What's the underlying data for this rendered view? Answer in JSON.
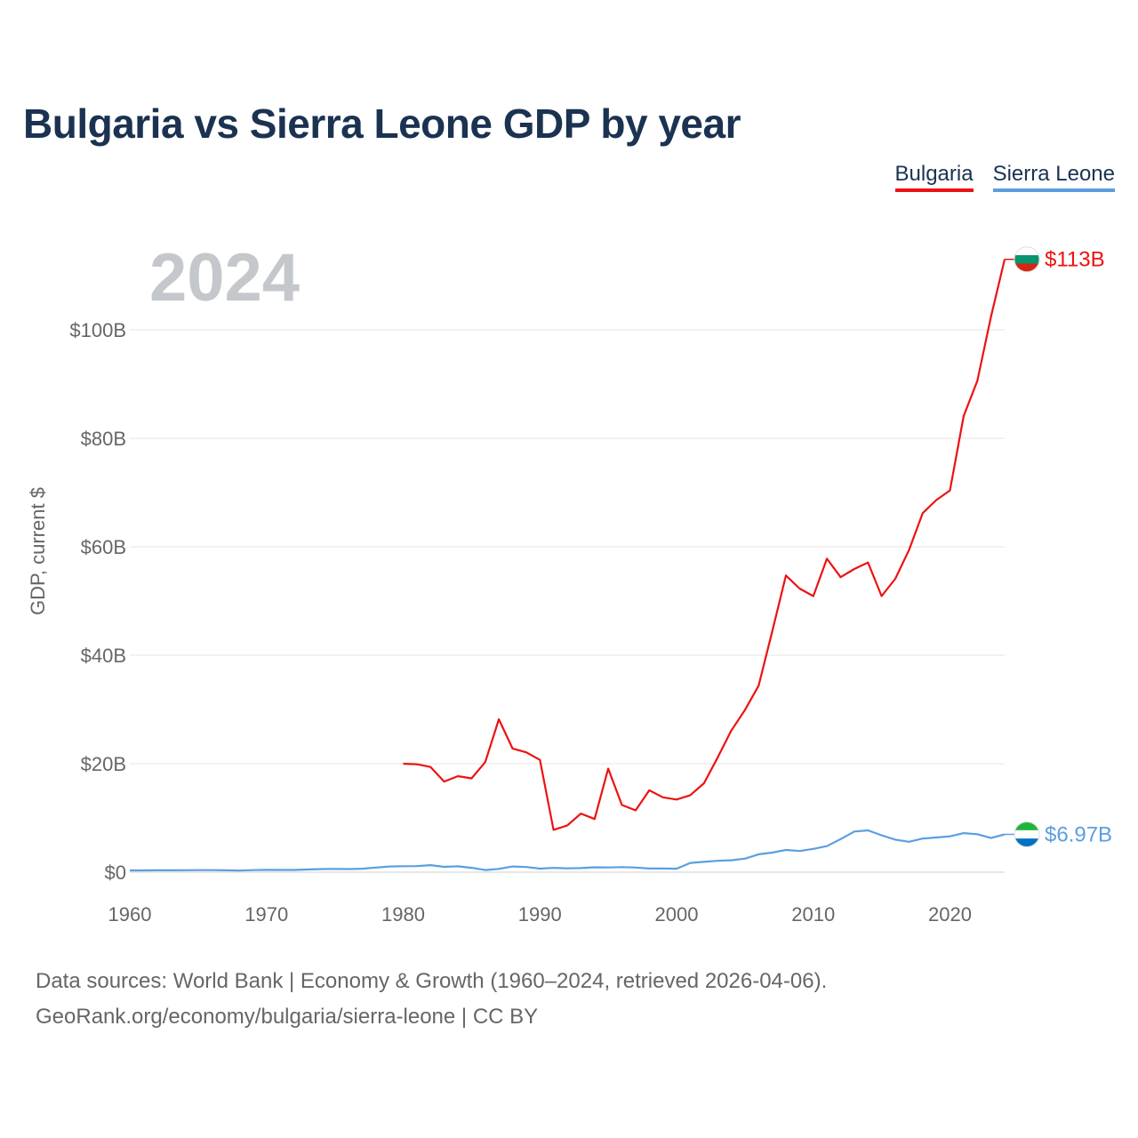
{
  "header": {
    "title": "Bulgaria vs Sierra Leone GDP by year"
  },
  "legend": [
    {
      "label": "Bulgaria",
      "color": "#ee1111"
    },
    {
      "label": "Sierra Leone",
      "color": "#5b9ee0"
    }
  ],
  "footer": {
    "line1": "Data sources: World Bank | Economy & Growth (1960–2024, retrieved 2026-04-06).",
    "line2": "GeoRank.org/economy/bulgaria/sierra-leone | CC BY"
  },
  "chart_data": {
    "type": "line",
    "title": "Bulgaria vs Sierra Leone GDP by year",
    "year_label": "2024",
    "xlabel": "",
    "ylabel": "GDP, current $",
    "xlim": [
      1960,
      2024
    ],
    "ylim": [
      0,
      120
    ],
    "y_unit": "billions of current US$",
    "x_ticks": [
      1960,
      1970,
      1980,
      1990,
      2000,
      2010,
      2020
    ],
    "x_tick_labels": [
      "1960",
      "1970",
      "1980",
      "1990",
      "2000",
      "2010",
      "2020"
    ],
    "y_ticks": [
      0,
      20,
      40,
      60,
      80,
      100
    ],
    "y_tick_labels": [
      "$0",
      "$20B",
      "$40B",
      "$60B",
      "$80B",
      "$100B"
    ],
    "grid": true,
    "series": [
      {
        "name": "Bulgaria",
        "color": "#ee1111",
        "end_label": "$113B",
        "flag": "bulgaria-flag-icon",
        "points": [
          [
            1980,
            20.0
          ],
          [
            1981,
            19.9
          ],
          [
            1982,
            19.4
          ],
          [
            1983,
            16.7
          ],
          [
            1984,
            17.7
          ],
          [
            1985,
            17.3
          ],
          [
            1986,
            20.3
          ],
          [
            1987,
            28.2
          ],
          [
            1988,
            22.8
          ],
          [
            1989,
            22.1
          ],
          [
            1990,
            20.7
          ],
          [
            1991,
            7.8
          ],
          [
            1992,
            8.6
          ],
          [
            1993,
            10.8
          ],
          [
            1994,
            9.8
          ],
          [
            1995,
            19.1
          ],
          [
            1996,
            12.4
          ],
          [
            1997,
            11.4
          ],
          [
            1998,
            15.1
          ],
          [
            1999,
            13.8
          ],
          [
            2000,
            13.4
          ],
          [
            2001,
            14.2
          ],
          [
            2002,
            16.4
          ],
          [
            2003,
            21.1
          ],
          [
            2004,
            26.1
          ],
          [
            2005,
            29.9
          ],
          [
            2006,
            34.4
          ],
          [
            2007,
            44.4
          ],
          [
            2008,
            54.7
          ],
          [
            2009,
            52.3
          ],
          [
            2010,
            50.9
          ],
          [
            2011,
            57.8
          ],
          [
            2012,
            54.4
          ],
          [
            2013,
            55.9
          ],
          [
            2014,
            57.1
          ],
          [
            2015,
            50.9
          ],
          [
            2016,
            54.1
          ],
          [
            2017,
            59.4
          ],
          [
            2018,
            66.2
          ],
          [
            2019,
            68.6
          ],
          [
            2020,
            70.4
          ],
          [
            2021,
            84.1
          ],
          [
            2022,
            90.6
          ],
          [
            2023,
            102.4
          ],
          [
            2024,
            113.0
          ]
        ]
      },
      {
        "name": "Sierra Leone",
        "color": "#5b9ee0",
        "end_label": "$6.97B",
        "flag": "sierra-leone-flag-icon",
        "points": [
          [
            1960,
            0.32
          ],
          [
            1961,
            0.33
          ],
          [
            1962,
            0.34
          ],
          [
            1963,
            0.35
          ],
          [
            1964,
            0.36
          ],
          [
            1965,
            0.37
          ],
          [
            1966,
            0.38
          ],
          [
            1967,
            0.35
          ],
          [
            1968,
            0.3
          ],
          [
            1969,
            0.38
          ],
          [
            1970,
            0.42
          ],
          [
            1971,
            0.41
          ],
          [
            1972,
            0.41
          ],
          [
            1973,
            0.5
          ],
          [
            1974,
            0.57
          ],
          [
            1975,
            0.6
          ],
          [
            1976,
            0.58
          ],
          [
            1977,
            0.64
          ],
          [
            1978,
            0.85
          ],
          [
            1979,
            1.05
          ],
          [
            1980,
            1.1
          ],
          [
            1981,
            1.12
          ],
          [
            1982,
            1.3
          ],
          [
            1983,
            0.98
          ],
          [
            1984,
            1.08
          ],
          [
            1985,
            0.8
          ],
          [
            1986,
            0.4
          ],
          [
            1987,
            0.6
          ],
          [
            1988,
            1.05
          ],
          [
            1989,
            0.95
          ],
          [
            1990,
            0.65
          ],
          [
            1991,
            0.78
          ],
          [
            1992,
            0.7
          ],
          [
            1993,
            0.76
          ],
          [
            1994,
            0.9
          ],
          [
            1995,
            0.87
          ],
          [
            1996,
            0.94
          ],
          [
            1997,
            0.85
          ],
          [
            1998,
            0.67
          ],
          [
            1999,
            0.67
          ],
          [
            2000,
            0.64
          ],
          [
            2001,
            1.7
          ],
          [
            2002,
            1.9
          ],
          [
            2003,
            2.1
          ],
          [
            2004,
            2.2
          ],
          [
            2005,
            2.5
          ],
          [
            2006,
            3.3
          ],
          [
            2007,
            3.6
          ],
          [
            2008,
            4.1
          ],
          [
            2009,
            3.9
          ],
          [
            2010,
            4.3
          ],
          [
            2011,
            4.8
          ],
          [
            2012,
            6.1
          ],
          [
            2013,
            7.5
          ],
          [
            2014,
            7.7
          ],
          [
            2015,
            6.8
          ],
          [
            2016,
            6.0
          ],
          [
            2017,
            5.6
          ],
          [
            2018,
            6.2
          ],
          [
            2019,
            6.4
          ],
          [
            2020,
            6.6
          ],
          [
            2021,
            7.2
          ],
          [
            2022,
            7.0
          ],
          [
            2023,
            6.3
          ],
          [
            2024,
            6.97
          ]
        ]
      }
    ]
  }
}
